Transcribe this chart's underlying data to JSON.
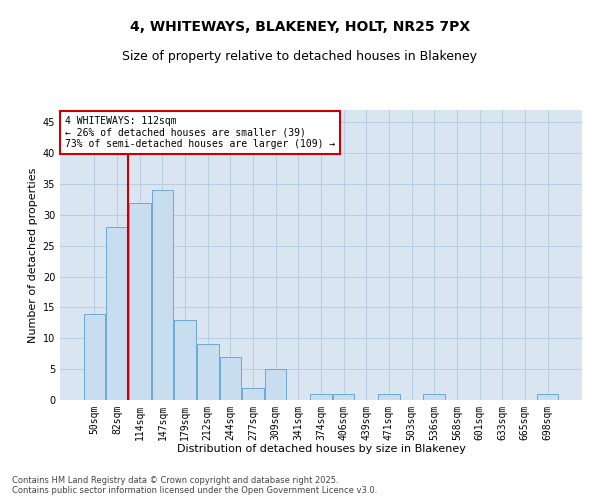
{
  "title": "4, WHITEWAYS, BLAKENEY, HOLT, NR25 7PX",
  "subtitle": "Size of property relative to detached houses in Blakeney",
  "xlabel": "Distribution of detached houses by size in Blakeney",
  "ylabel": "Number of detached properties",
  "categories": [
    "50sqm",
    "82sqm",
    "114sqm",
    "147sqm",
    "179sqm",
    "212sqm",
    "244sqm",
    "277sqm",
    "309sqm",
    "341sqm",
    "374sqm",
    "406sqm",
    "439sqm",
    "471sqm",
    "503sqm",
    "536sqm",
    "568sqm",
    "601sqm",
    "633sqm",
    "665sqm",
    "698sqm"
  ],
  "values": [
    14,
    28,
    32,
    34,
    13,
    9,
    7,
    2,
    5,
    0,
    1,
    1,
    0,
    1,
    0,
    1,
    0,
    0,
    0,
    0,
    1
  ],
  "bar_color": "#c9ddf0",
  "bar_edgecolor": "#6aaad4",
  "vline_color": "#cc0000",
  "vline_x_index": 2,
  "annotation_text": "4 WHITEWAYS: 112sqm\n← 26% of detached houses are smaller (39)\n73% of semi-detached houses are larger (109) →",
  "annotation_box_edgecolor": "#cc0000",
  "annotation_box_facecolor": "#ffffff",
  "ylim": [
    0,
    47
  ],
  "yticks": [
    0,
    5,
    10,
    15,
    20,
    25,
    30,
    35,
    40,
    45
  ],
  "grid_color": "#b8cce0",
  "background_color": "#d9e6f2",
  "footer_text": "Contains HM Land Registry data © Crown copyright and database right 2025.\nContains public sector information licensed under the Open Government Licence v3.0.",
  "title_fontsize": 10,
  "subtitle_fontsize": 9,
  "xlabel_fontsize": 8,
  "ylabel_fontsize": 8,
  "tick_fontsize": 7,
  "annotation_fontsize": 7,
  "footer_fontsize": 6
}
